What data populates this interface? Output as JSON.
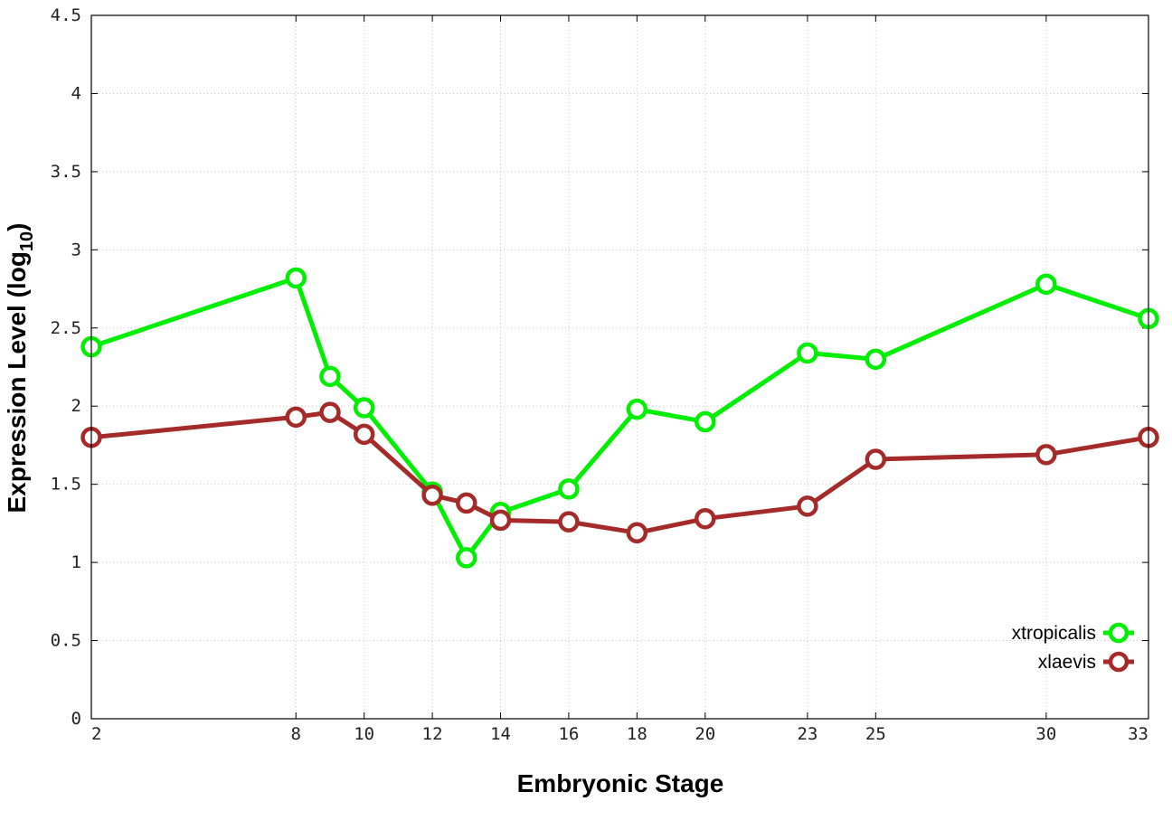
{
  "chart_data": {
    "type": "line",
    "xlabel": "Embryonic Stage",
    "ylabel_main": "Expression Level (log",
    "ylabel_sub": "10",
    "ylabel_close": ")",
    "xlim": [
      2,
      33
    ],
    "ylim": [
      0,
      4.5
    ],
    "x_ticks": [
      2,
      8,
      10,
      12,
      14,
      16,
      18,
      20,
      23,
      25,
      30,
      33
    ],
    "x_tick_labels": [
      "2",
      "8",
      "10",
      "12",
      "14",
      "16",
      "18",
      "20",
      "23",
      "25",
      "30",
      "33"
    ],
    "y_ticks": [
      0,
      0.5,
      1,
      1.5,
      2,
      2.5,
      3,
      3.5,
      4,
      4.5
    ],
    "y_tick_labels": [
      "0",
      "0.5",
      "1",
      "1.5",
      "2",
      "2.5",
      "3",
      "3.5",
      "4",
      "4.5"
    ],
    "grid": true,
    "legend_position": "bottom-right",
    "x": [
      2,
      8,
      9,
      10,
      12,
      13,
      14,
      16,
      18,
      20,
      23,
      25,
      30,
      33
    ],
    "series": [
      {
        "name": "xtropicalis",
        "color": "#00ee00",
        "values": [
          2.38,
          2.82,
          2.19,
          1.99,
          1.45,
          1.03,
          1.32,
          1.47,
          1.98,
          1.9,
          2.34,
          2.3,
          2.78,
          2.56
        ]
      },
      {
        "name": "xlaevis",
        "color": "#a52a2a",
        "values": [
          1.8,
          1.93,
          1.96,
          1.82,
          1.43,
          1.38,
          1.27,
          1.26,
          1.19,
          1.28,
          1.36,
          1.66,
          1.69,
          1.8
        ]
      }
    ]
  }
}
